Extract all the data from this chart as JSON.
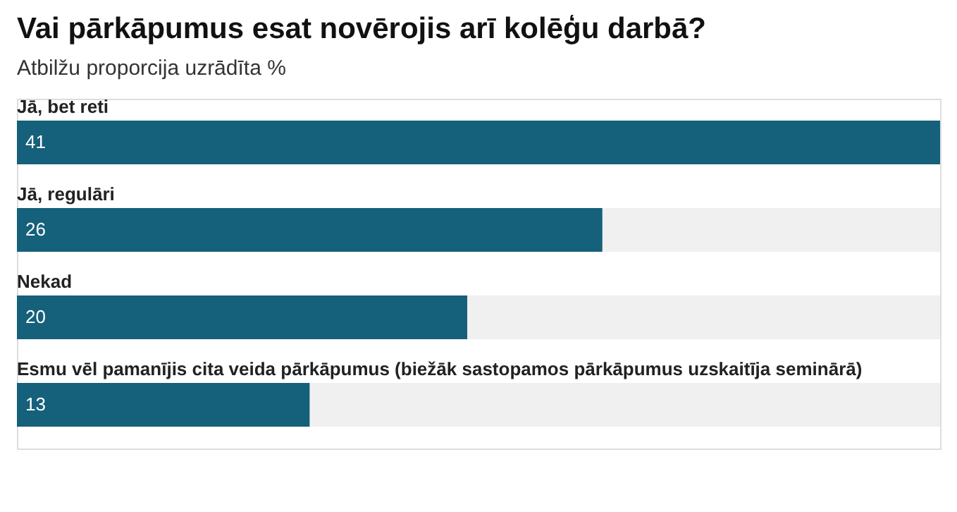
{
  "chart_data": {
    "type": "bar",
    "orientation": "horizontal",
    "title": "Vai pārkāpumus esat novērojis arī kolēģu darbā?",
    "subtitle": "Atbilžu proporcija uzrādīta %",
    "categories": [
      "Jā, bet reti",
      "Jā, regulāri",
      "Nekad",
      "Esmu vēl pamanījis cita veida pārkāpumus (biežāk sastopamos pārkāpumus uzskaitīja seminārā)"
    ],
    "values": [
      41,
      26,
      20,
      13
    ],
    "color": "#15607a",
    "xlim": [
      0,
      41
    ],
    "data_labels": true
  }
}
